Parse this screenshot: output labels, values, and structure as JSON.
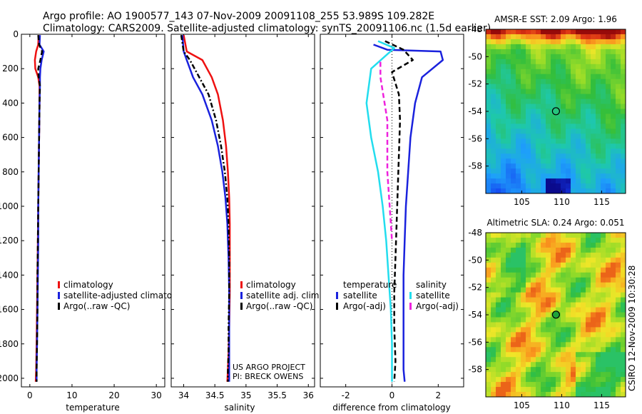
{
  "header": {
    "line1": "Argo profile: AO 1900577_143 07-Nov-2009 20091108_255 53.989S 109.282E",
    "line2": "Climatology: CARS2009. Satellite-adjusted climatology: synTS_20091106.nc (1.5d earlier)"
  },
  "footer": {
    "project": "US ARGO PROJECT",
    "pi": "PI: BRECK OWENS",
    "credit": "CSIRO 12-Nov-2009 10:30:28"
  },
  "colors": {
    "red": "#ee1111",
    "blue": "#1a22dd",
    "black": "#000000",
    "cyan": "#22ddee",
    "magenta": "#ee22dd"
  },
  "chart_data": [
    {
      "type": "line",
      "id": "temperature",
      "xlabel": "temperature",
      "xlim": [
        -2,
        32
      ],
      "ylim": [
        0,
        2050
      ],
      "xticks": [
        0,
        10,
        20,
        30
      ],
      "yticks": [
        0,
        200,
        400,
        600,
        800,
        1000,
        1200,
        1400,
        1600,
        1800,
        2000
      ],
      "legend": [
        "climatology",
        "satellite-adjusted climatolog",
        "Argo(..raw -QC)"
      ],
      "series": [
        {
          "name": "climatology",
          "color": "red",
          "style": "solid",
          "x": [
            2.1,
            2.0,
            1.5,
            1.2,
            1.3,
            2.0,
            2.3,
            2.3,
            2.2,
            2.1,
            2.0,
            1.9,
            1.8,
            1.7,
            1.6,
            1.5,
            1.4
          ],
          "y": [
            5,
            60,
            100,
            150,
            200,
            250,
            300,
            400,
            600,
            800,
            1000,
            1200,
            1400,
            1600,
            1800,
            1950,
            2020
          ]
        },
        {
          "name": "satellite-adjusted climatology",
          "color": "blue",
          "style": "solid",
          "x": [
            2.4,
            2.3,
            3.3,
            2.8,
            2.5,
            2.4,
            2.4,
            2.3,
            2.2,
            2.1,
            2.0,
            2.0,
            1.9,
            1.8,
            1.7,
            1.6,
            1.6
          ],
          "y": [
            5,
            60,
            100,
            150,
            200,
            250,
            300,
            400,
            600,
            800,
            1000,
            1200,
            1400,
            1600,
            1800,
            1950,
            2020
          ]
        },
        {
          "name": "Argo(..raw -QC)",
          "color": "black",
          "style": "dashed",
          "x": [
            2.0,
            2.2,
            2.9,
            2.5,
            2.0,
            2.1,
            2.4,
            2.3,
            2.2,
            2.1,
            2.0,
            1.9,
            1.8,
            1.8,
            1.7,
            1.6,
            1.6
          ],
          "y": [
            5,
            60,
            100,
            150,
            200,
            250,
            300,
            400,
            600,
            800,
            1000,
            1200,
            1400,
            1600,
            1800,
            1950,
            2020
          ]
        }
      ]
    },
    {
      "type": "line",
      "id": "salinity",
      "xlabel": "salinity",
      "xlim": [
        33.8,
        36.1
      ],
      "ylim": [
        0,
        2050
      ],
      "xticks": [
        34,
        34.5,
        35,
        35.5,
        36
      ],
      "yticks": [
        0,
        200,
        400,
        600,
        800,
        1000,
        1200,
        1400,
        1600,
        1800,
        2000
      ],
      "legend": [
        "climatology",
        "satellite adj. clim.",
        "Argo(..raw -QC)"
      ],
      "series": [
        {
          "name": "climatology",
          "color": "red",
          "style": "solid",
          "x": [
            34.0,
            34.05,
            34.3,
            34.45,
            34.55,
            34.63,
            34.68,
            34.71,
            34.73,
            34.74,
            34.74,
            34.74,
            34.73,
            34.72,
            34.71,
            34.7
          ],
          "y": [
            5,
            100,
            150,
            250,
            350,
            500,
            650,
            800,
            950,
            1100,
            1300,
            1500,
            1700,
            1850,
            1950,
            2020
          ]
        },
        {
          "name": "satellite adj. clim.",
          "color": "blue",
          "style": "solid",
          "x": [
            33.98,
            34.0,
            34.05,
            34.15,
            34.3,
            34.45,
            34.55,
            34.62,
            34.67,
            34.7,
            34.72,
            34.73,
            34.73,
            34.73,
            34.73,
            34.73
          ],
          "y": [
            5,
            100,
            150,
            250,
            350,
            500,
            650,
            800,
            950,
            1100,
            1300,
            1500,
            1700,
            1850,
            1950,
            2020
          ]
        },
        {
          "name": "Argo(..raw -QC)",
          "color": "black",
          "style": "dashdot",
          "x": [
            33.96,
            34.0,
            34.1,
            34.25,
            34.4,
            34.52,
            34.6,
            34.66,
            34.7,
            34.72,
            34.73,
            34.73,
            34.72,
            34.72,
            34.71,
            34.71
          ],
          "y": [
            5,
            100,
            150,
            250,
            350,
            500,
            650,
            800,
            950,
            1100,
            1300,
            1500,
            1700,
            1850,
            1950,
            2020
          ]
        }
      ]
    },
    {
      "type": "line",
      "id": "difference",
      "xlabel": "difference from climatology",
      "xlim": [
        -3.1,
        3.1
      ],
      "ylim": [
        0,
        2050
      ],
      "xticks": [
        -2,
        0,
        2
      ],
      "yticks": [
        0,
        200,
        400,
        600,
        800,
        1000,
        1200,
        1400,
        1600,
        1800,
        2000
      ],
      "legend_left_title": "temperature",
      "legend_left": [
        "satellite",
        "Argo(-adj)"
      ],
      "legend_right_title": "salinity",
      "legend_right": [
        "satellite",
        "Argo(-adj)"
      ],
      "series": [
        {
          "name": "temperature satellite",
          "color": "blue",
          "style": "solid",
          "x": [
            -0.8,
            -0.2,
            2.1,
            2.2,
            1.3,
            1.0,
            0.8,
            0.7,
            0.6,
            0.55,
            0.5,
            0.5,
            0.5,
            0.5,
            0.55
          ],
          "y": [
            60,
            90,
            100,
            150,
            250,
            400,
            600,
            800,
            1000,
            1200,
            1400,
            1600,
            1800,
            1950,
            2020
          ]
        },
        {
          "name": "temperature Argo(-adj)",
          "color": "black",
          "style": "dashed",
          "x": [
            -0.3,
            0.5,
            0.9,
            0.0,
            0.3,
            0.35,
            0.3,
            0.25,
            0.2,
            0.15,
            0.1,
            0.1,
            0.15,
            0.1
          ],
          "y": [
            40,
            90,
            150,
            220,
            350,
            500,
            700,
            900,
            1100,
            1300,
            1500,
            1700,
            1900,
            2020
          ]
        },
        {
          "name": "salinity satellite",
          "color": "cyan",
          "style": "solid",
          "x": [
            -0.6,
            0.1,
            -0.9,
            -1.1,
            -0.9,
            -0.6,
            -0.4,
            -0.25,
            -0.15,
            -0.05,
            0.0,
            0.0,
            0.0
          ],
          "y": [
            40,
            80,
            200,
            400,
            600,
            800,
            1000,
            1200,
            1400,
            1600,
            1800,
            1950,
            2020
          ]
        },
        {
          "name": "salinity Argo(-adj)",
          "color": "magenta",
          "style": "dashed",
          "x": [
            -0.5,
            -0.5,
            -0.2,
            -0.2,
            -0.1,
            0.0
          ],
          "y": [
            160,
            250,
            500,
            800,
            1000,
            1200
          ]
        }
      ]
    },
    {
      "type": "heatmap",
      "id": "sst",
      "title": "AMSR-E SST: 2.09 Argo: 1.96",
      "xlim": [
        100.5,
        118
      ],
      "ylim": [
        -60,
        -48
      ],
      "xticks": [
        105,
        110,
        115
      ],
      "yticks": [
        -48,
        -50,
        -52,
        -54,
        -56,
        -58
      ],
      "marker": {
        "lon": 109.282,
        "lat": -53.989
      }
    },
    {
      "type": "heatmap",
      "id": "sla",
      "title": "Altimetric SLA: 0.24 Argo: 0.051",
      "xlim": [
        100.5,
        118
      ],
      "ylim": [
        -60,
        -48
      ],
      "xticks": [
        105,
        110,
        115
      ],
      "yticks": [
        -48,
        -50,
        -52,
        -54,
        -56,
        -58
      ],
      "marker": {
        "lon": 109.282,
        "lat": -53.989
      }
    }
  ]
}
